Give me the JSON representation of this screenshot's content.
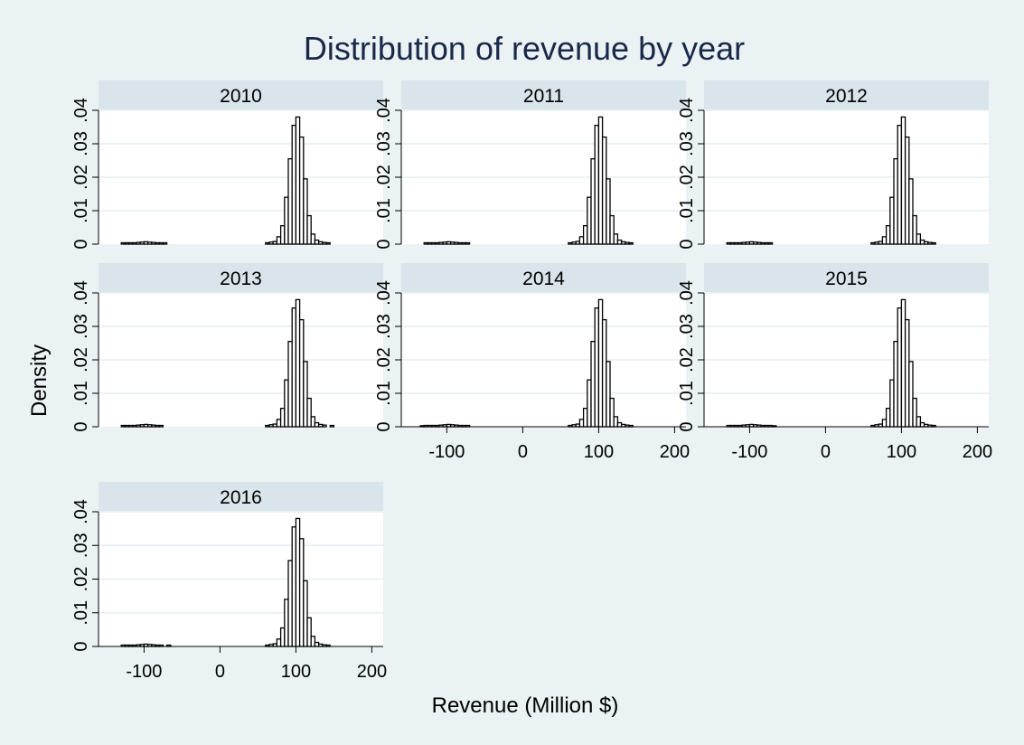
{
  "chart_data": {
    "type": "bar",
    "title": "Distribution of revenue by year",
    "xlabel": "Revenue (Million $)",
    "ylabel": "Density",
    "xlim": [
      -160,
      215
    ],
    "ylim": [
      0,
      0.04
    ],
    "xticks": [
      -100,
      0,
      100,
      200
    ],
    "xtick_labels": [
      "-100",
      "0",
      "100",
      "200"
    ],
    "yticks": [
      0,
      0.01,
      0.02,
      0.03,
      0.04
    ],
    "ytick_labels": [
      "0",
      ".01",
      ".02",
      ".03",
      ".04"
    ],
    "grid": true,
    "bin_width": 5,
    "colors": {
      "background": "#eaf2f3",
      "plot": "#ffffff",
      "strip": "#d9e5ea",
      "bar": "#000000",
      "title": "#1a2949"
    },
    "panels": [
      {
        "label": "2010",
        "bins": [
          {
            "x": -130,
            "density": 0.0004
          },
          {
            "x": -125,
            "density": 0.0004
          },
          {
            "x": -120,
            "density": 0.0004
          },
          {
            "x": -115,
            "density": 0.0004
          },
          {
            "x": -110,
            "density": 0.0005
          },
          {
            "x": -105,
            "density": 0.0006
          },
          {
            "x": -100,
            "density": 0.0007
          },
          {
            "x": -95,
            "density": 0.0006
          },
          {
            "x": -90,
            "density": 0.0005
          },
          {
            "x": -85,
            "density": 0.0004
          },
          {
            "x": -80,
            "density": 0.0004
          },
          {
            "x": -75,
            "density": 0.0004
          },
          {
            "x": 60,
            "density": 0.0004
          },
          {
            "x": 65,
            "density": 0.0006
          },
          {
            "x": 70,
            "density": 0.0008
          },
          {
            "x": 75,
            "density": 0.0022
          },
          {
            "x": 80,
            "density": 0.0055
          },
          {
            "x": 85,
            "density": 0.014
          },
          {
            "x": 90,
            "density": 0.0255
          },
          {
            "x": 95,
            "density": 0.0355
          },
          {
            "x": 100,
            "density": 0.038
          },
          {
            "x": 105,
            "density": 0.032
          },
          {
            "x": 110,
            "density": 0.0195
          },
          {
            "x": 115,
            "density": 0.0085
          },
          {
            "x": 120,
            "density": 0.003
          },
          {
            "x": 125,
            "density": 0.0012
          },
          {
            "x": 130,
            "density": 0.0007
          },
          {
            "x": 135,
            "density": 0.0005
          },
          {
            "x": 140,
            "density": 0.0004
          }
        ]
      },
      {
        "label": "2011",
        "bins": [
          {
            "x": -130,
            "density": 0.0004
          },
          {
            "x": -125,
            "density": 0.0004
          },
          {
            "x": -120,
            "density": 0.0004
          },
          {
            "x": -115,
            "density": 0.0004
          },
          {
            "x": -110,
            "density": 0.0005
          },
          {
            "x": -105,
            "density": 0.0006
          },
          {
            "x": -100,
            "density": 0.0007
          },
          {
            "x": -95,
            "density": 0.0006
          },
          {
            "x": -90,
            "density": 0.0005
          },
          {
            "x": -85,
            "density": 0.0004
          },
          {
            "x": -80,
            "density": 0.0004
          },
          {
            "x": -75,
            "density": 0.0004
          },
          {
            "x": 60,
            "density": 0.0004
          },
          {
            "x": 65,
            "density": 0.0006
          },
          {
            "x": 70,
            "density": 0.0008
          },
          {
            "x": 75,
            "density": 0.0022
          },
          {
            "x": 80,
            "density": 0.0055
          },
          {
            "x": 85,
            "density": 0.014
          },
          {
            "x": 90,
            "density": 0.0255
          },
          {
            "x": 95,
            "density": 0.0355
          },
          {
            "x": 100,
            "density": 0.038
          },
          {
            "x": 105,
            "density": 0.032
          },
          {
            "x": 110,
            "density": 0.0195
          },
          {
            "x": 115,
            "density": 0.0085
          },
          {
            "x": 120,
            "density": 0.003
          },
          {
            "x": 125,
            "density": 0.0012
          },
          {
            "x": 130,
            "density": 0.0007
          },
          {
            "x": 135,
            "density": 0.0005
          },
          {
            "x": 140,
            "density": 0.0004
          }
        ]
      },
      {
        "label": "2012",
        "bins": [
          {
            "x": -130,
            "density": 0.0004
          },
          {
            "x": -125,
            "density": 0.0004
          },
          {
            "x": -120,
            "density": 0.0004
          },
          {
            "x": -115,
            "density": 0.0004
          },
          {
            "x": -110,
            "density": 0.0005
          },
          {
            "x": -105,
            "density": 0.0006
          },
          {
            "x": -100,
            "density": 0.0007
          },
          {
            "x": -95,
            "density": 0.0006
          },
          {
            "x": -90,
            "density": 0.0005
          },
          {
            "x": -85,
            "density": 0.0004
          },
          {
            "x": -80,
            "density": 0.0004
          },
          {
            "x": -75,
            "density": 0.0004
          },
          {
            "x": 60,
            "density": 0.0004
          },
          {
            "x": 65,
            "density": 0.0006
          },
          {
            "x": 70,
            "density": 0.0008
          },
          {
            "x": 75,
            "density": 0.0022
          },
          {
            "x": 80,
            "density": 0.0055
          },
          {
            "x": 85,
            "density": 0.014
          },
          {
            "x": 90,
            "density": 0.0255
          },
          {
            "x": 95,
            "density": 0.0355
          },
          {
            "x": 100,
            "density": 0.038
          },
          {
            "x": 105,
            "density": 0.032
          },
          {
            "x": 110,
            "density": 0.0195
          },
          {
            "x": 115,
            "density": 0.0085
          },
          {
            "x": 120,
            "density": 0.003
          },
          {
            "x": 125,
            "density": 0.0012
          },
          {
            "x": 130,
            "density": 0.0007
          },
          {
            "x": 135,
            "density": 0.0005
          },
          {
            "x": 140,
            "density": 0.0004
          }
        ]
      },
      {
        "label": "2013",
        "bins": [
          {
            "x": -130,
            "density": 0.0004
          },
          {
            "x": -125,
            "density": 0.0004
          },
          {
            "x": -120,
            "density": 0.0004
          },
          {
            "x": -115,
            "density": 0.0004
          },
          {
            "x": -110,
            "density": 0.0005
          },
          {
            "x": -105,
            "density": 0.0006
          },
          {
            "x": -100,
            "density": 0.0007
          },
          {
            "x": -95,
            "density": 0.0006
          },
          {
            "x": -90,
            "density": 0.0005
          },
          {
            "x": -85,
            "density": 0.0004
          },
          {
            "x": -80,
            "density": 0.0004
          },
          {
            "x": 60,
            "density": 0.0004
          },
          {
            "x": 65,
            "density": 0.0006
          },
          {
            "x": 70,
            "density": 0.0008
          },
          {
            "x": 75,
            "density": 0.0022
          },
          {
            "x": 80,
            "density": 0.0055
          },
          {
            "x": 85,
            "density": 0.014
          },
          {
            "x": 90,
            "density": 0.0255
          },
          {
            "x": 95,
            "density": 0.0355
          },
          {
            "x": 100,
            "density": 0.038
          },
          {
            "x": 105,
            "density": 0.032
          },
          {
            "x": 110,
            "density": 0.0195
          },
          {
            "x": 115,
            "density": 0.0085
          },
          {
            "x": 120,
            "density": 0.003
          },
          {
            "x": 125,
            "density": 0.0012
          },
          {
            "x": 130,
            "density": 0.0007
          },
          {
            "x": 135,
            "density": 0.0005
          },
          {
            "x": 145,
            "density": 0.0004
          }
        ]
      },
      {
        "label": "2014",
        "bins": [
          {
            "x": -135,
            "density": 0.0003
          },
          {
            "x": -130,
            "density": 0.0004
          },
          {
            "x": -125,
            "density": 0.0004
          },
          {
            "x": -120,
            "density": 0.0004
          },
          {
            "x": -115,
            "density": 0.0004
          },
          {
            "x": -110,
            "density": 0.0005
          },
          {
            "x": -105,
            "density": 0.0006
          },
          {
            "x": -100,
            "density": 0.0007
          },
          {
            "x": -95,
            "density": 0.0006
          },
          {
            "x": -90,
            "density": 0.0005
          },
          {
            "x": -85,
            "density": 0.0004
          },
          {
            "x": -80,
            "density": 0.0004
          },
          {
            "x": -75,
            "density": 0.0004
          },
          {
            "x": 60,
            "density": 0.0004
          },
          {
            "x": 65,
            "density": 0.0006
          },
          {
            "x": 70,
            "density": 0.0008
          },
          {
            "x": 75,
            "density": 0.0022
          },
          {
            "x": 80,
            "density": 0.0055
          },
          {
            "x": 85,
            "density": 0.014
          },
          {
            "x": 90,
            "density": 0.0255
          },
          {
            "x": 95,
            "density": 0.0355
          },
          {
            "x": 100,
            "density": 0.038
          },
          {
            "x": 105,
            "density": 0.032
          },
          {
            "x": 110,
            "density": 0.0195
          },
          {
            "x": 115,
            "density": 0.0085
          },
          {
            "x": 120,
            "density": 0.003
          },
          {
            "x": 125,
            "density": 0.0012
          },
          {
            "x": 130,
            "density": 0.0007
          },
          {
            "x": 135,
            "density": 0.0005
          },
          {
            "x": 140,
            "density": 0.0004
          }
        ]
      },
      {
        "label": "2015",
        "bins": [
          {
            "x": -130,
            "density": 0.0004
          },
          {
            "x": -125,
            "density": 0.0004
          },
          {
            "x": -120,
            "density": 0.0004
          },
          {
            "x": -115,
            "density": 0.0004
          },
          {
            "x": -110,
            "density": 0.0005
          },
          {
            "x": -105,
            "density": 0.0006
          },
          {
            "x": -100,
            "density": 0.0007
          },
          {
            "x": -95,
            "density": 0.0006
          },
          {
            "x": -90,
            "density": 0.0005
          },
          {
            "x": -85,
            "density": 0.0004
          },
          {
            "x": -80,
            "density": 0.0004
          },
          {
            "x": -75,
            "density": 0.0004
          },
          {
            "x": -70,
            "density": 0.0003
          },
          {
            "x": 60,
            "density": 0.0004
          },
          {
            "x": 65,
            "density": 0.0006
          },
          {
            "x": 70,
            "density": 0.0008
          },
          {
            "x": 75,
            "density": 0.0022
          },
          {
            "x": 80,
            "density": 0.0055
          },
          {
            "x": 85,
            "density": 0.014
          },
          {
            "x": 90,
            "density": 0.0255
          },
          {
            "x": 95,
            "density": 0.0355
          },
          {
            "x": 100,
            "density": 0.038
          },
          {
            "x": 105,
            "density": 0.032
          },
          {
            "x": 110,
            "density": 0.0195
          },
          {
            "x": 115,
            "density": 0.0085
          },
          {
            "x": 120,
            "density": 0.003
          },
          {
            "x": 125,
            "density": 0.0012
          },
          {
            "x": 130,
            "density": 0.0007
          },
          {
            "x": 135,
            "density": 0.0005
          },
          {
            "x": 140,
            "density": 0.0004
          }
        ]
      },
      {
        "label": "2016",
        "bins": [
          {
            "x": -130,
            "density": 0.0004
          },
          {
            "x": -125,
            "density": 0.0004
          },
          {
            "x": -120,
            "density": 0.0004
          },
          {
            "x": -115,
            "density": 0.0004
          },
          {
            "x": -110,
            "density": 0.0005
          },
          {
            "x": -105,
            "density": 0.0006
          },
          {
            "x": -100,
            "density": 0.0007
          },
          {
            "x": -95,
            "density": 0.0006
          },
          {
            "x": -90,
            "density": 0.0005
          },
          {
            "x": -85,
            "density": 0.0004
          },
          {
            "x": -80,
            "density": 0.0004
          },
          {
            "x": -70,
            "density": 0.0004
          },
          {
            "x": 60,
            "density": 0.0004
          },
          {
            "x": 65,
            "density": 0.0006
          },
          {
            "x": 70,
            "density": 0.0008
          },
          {
            "x": 75,
            "density": 0.0022
          },
          {
            "x": 80,
            "density": 0.0055
          },
          {
            "x": 85,
            "density": 0.014
          },
          {
            "x": 90,
            "density": 0.0255
          },
          {
            "x": 95,
            "density": 0.0355
          },
          {
            "x": 100,
            "density": 0.038
          },
          {
            "x": 105,
            "density": 0.032
          },
          {
            "x": 110,
            "density": 0.0195
          },
          {
            "x": 115,
            "density": 0.0085
          },
          {
            "x": 120,
            "density": 0.003
          },
          {
            "x": 125,
            "density": 0.0012
          },
          {
            "x": 130,
            "density": 0.0007
          },
          {
            "x": 135,
            "density": 0.0005
          },
          {
            "x": 140,
            "density": 0.0004
          }
        ]
      }
    ]
  }
}
